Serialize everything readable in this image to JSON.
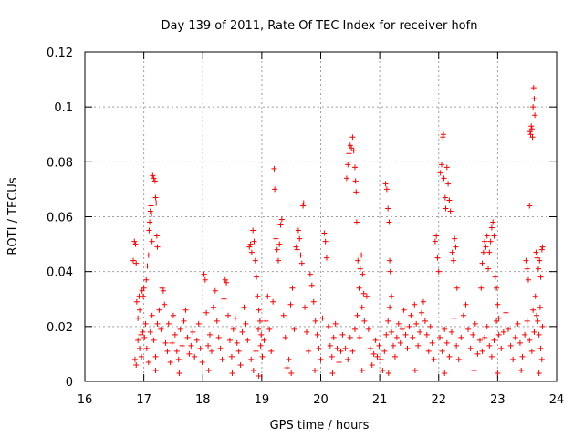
{
  "chart_data": {
    "type": "scatter",
    "title": "Day 139 of 2011, Rate Of TEC Index for receiver hofn",
    "xlabel": "GPS time / hours",
    "ylabel": "ROTI / TECUs",
    "xlim": [
      16,
      24
    ],
    "ylim": [
      0,
      0.12
    ],
    "x_ticks": [
      16,
      17,
      18,
      19,
      20,
      21,
      22,
      23,
      24
    ],
    "x_tick_labels": [
      "16",
      "17",
      "18",
      "19",
      "20",
      "21",
      "22",
      "23",
      "24"
    ],
    "y_ticks": [
      0,
      0.02,
      0.04,
      0.06,
      0.08,
      0.1,
      0.12
    ],
    "y_tick_labels": [
      "0",
      "0.02",
      "0.04",
      "0.06",
      "0.08",
      "0.1",
      "0.12"
    ],
    "grid": true,
    "marker": "+",
    "color": "#ff0000",
    "points": [
      [
        16.82,
        0.044
      ],
      [
        16.84,
        0.051
      ],
      [
        16.86,
        0.05
      ],
      [
        16.87,
        0.043
      ],
      [
        16.88,
        0.029
      ],
      [
        16.9,
        0.023
      ],
      [
        16.92,
        0.031
      ],
      [
        16.93,
        0.026
      ],
      [
        16.95,
        0.017
      ],
      [
        16.97,
        0.033
      ],
      [
        16.99,
        0.031
      ],
      [
        17.0,
        0.034
      ],
      [
        16.85,
        0.008
      ],
      [
        16.87,
        0.006
      ],
      [
        16.9,
        0.015
      ],
      [
        16.93,
        0.012
      ],
      [
        16.96,
        0.009
      ],
      [
        16.98,
        0.018
      ],
      [
        17.01,
        0.016
      ],
      [
        17.03,
        0.021
      ],
      [
        17.04,
        0.037
      ],
      [
        17.06,
        0.042
      ],
      [
        17.08,
        0.046
      ],
      [
        17.09,
        0.055
      ],
      [
        17.1,
        0.058
      ],
      [
        17.11,
        0.062
      ],
      [
        17.12,
        0.064
      ],
      [
        17.13,
        0.061
      ],
      [
        17.14,
        0.051
      ],
      [
        17.15,
        0.075
      ],
      [
        17.17,
        0.074
      ],
      [
        17.19,
        0.073
      ],
      [
        17.2,
        0.067
      ],
      [
        17.21,
        0.065
      ],
      [
        17.22,
        0.053
      ],
      [
        17.23,
        0.049
      ],
      [
        17.05,
        0.012
      ],
      [
        17.08,
        0.007
      ],
      [
        17.11,
        0.018
      ],
      [
        17.14,
        0.024
      ],
      [
        17.17,
        0.015
      ],
      [
        17.2,
        0.009
      ],
      [
        17.23,
        0.021
      ],
      [
        17.26,
        0.026
      ],
      [
        17.29,
        0.019
      ],
      [
        17.31,
        0.034
      ],
      [
        17.33,
        0.033
      ],
      [
        17.35,
        0.028
      ],
      [
        17.37,
        0.014
      ],
      [
        17.4,
        0.011
      ],
      [
        17.42,
        0.021
      ],
      [
        17.45,
        0.007
      ],
      [
        17.48,
        0.014
      ],
      [
        17.5,
        0.024
      ],
      [
        17.53,
        0.017
      ],
      [
        17.56,
        0.011
      ],
      [
        17.59,
        0.008
      ],
      [
        17.62,
        0.019
      ],
      [
        17.65,
        0.013
      ],
      [
        17.68,
        0.022
      ],
      [
        17.71,
        0.026
      ],
      [
        17.74,
        0.016
      ],
      [
        17.77,
        0.01
      ],
      [
        17.8,
        0.013
      ],
      [
        17.83,
        0.018
      ],
      [
        17.86,
        0.009
      ],
      [
        17.9,
        0.015
      ],
      [
        17.93,
        0.021
      ],
      [
        17.96,
        0.012
      ],
      [
        17.99,
        0.007
      ],
      [
        18.02,
        0.039
      ],
      [
        18.04,
        0.037
      ],
      [
        18.06,
        0.025
      ],
      [
        18.09,
        0.013
      ],
      [
        18.12,
        0.017
      ],
      [
        18.15,
        0.011
      ],
      [
        18.18,
        0.027
      ],
      [
        18.21,
        0.033
      ],
      [
        18.24,
        0.022
      ],
      [
        18.27,
        0.016
      ],
      [
        18.3,
        0.012
      ],
      [
        18.33,
        0.008
      ],
      [
        18.36,
        0.03
      ],
      [
        18.38,
        0.037
      ],
      [
        18.4,
        0.036
      ],
      [
        18.43,
        0.024
      ],
      [
        18.46,
        0.015
      ],
      [
        18.49,
        0.009
      ],
      [
        18.52,
        0.019
      ],
      [
        18.55,
        0.023
      ],
      [
        18.58,
        0.014
      ],
      [
        18.61,
        0.011
      ],
      [
        18.64,
        0.006
      ],
      [
        18.67,
        0.018
      ],
      [
        18.7,
        0.027
      ],
      [
        18.73,
        0.021
      ],
      [
        18.76,
        0.015
      ],
      [
        18.79,
        0.049
      ],
      [
        18.81,
        0.05
      ],
      [
        18.83,
        0.047
      ],
      [
        18.85,
        0.055
      ],
      [
        18.87,
        0.051
      ],
      [
        18.89,
        0.044
      ],
      [
        18.91,
        0.038
      ],
      [
        18.93,
        0.031
      ],
      [
        18.95,
        0.026
      ],
      [
        18.97,
        0.022
      ],
      [
        18.99,
        0.017
      ],
      [
        18.82,
        0.008
      ],
      [
        18.86,
        0.004
      ],
      [
        18.9,
        0.011
      ],
      [
        18.94,
        0.019
      ],
      [
        18.98,
        0.013
      ],
      [
        19.01,
        0.009
      ],
      [
        19.04,
        0.015
      ],
      [
        19.07,
        0.022
      ],
      [
        19.1,
        0.031
      ],
      [
        19.13,
        0.019
      ],
      [
        19.16,
        0.011
      ],
      [
        19.19,
        0.029
      ],
      [
        19.21,
        0.0775
      ],
      [
        19.22,
        0.07
      ],
      [
        19.24,
        0.052
      ],
      [
        19.26,
        0.048
      ],
      [
        19.28,
        0.044
      ],
      [
        19.3,
        0.05
      ],
      [
        19.32,
        0.057
      ],
      [
        19.34,
        0.059
      ],
      [
        19.37,
        0.024
      ],
      [
        19.4,
        0.016
      ],
      [
        19.43,
        0.005
      ],
      [
        19.46,
        0.008
      ],
      [
        19.49,
        0.028
      ],
      [
        19.52,
        0.034
      ],
      [
        19.55,
        0.019
      ],
      [
        19.58,
        0.049
      ],
      [
        19.6,
        0.048
      ],
      [
        19.62,
        0.055
      ],
      [
        19.64,
        0.052
      ],
      [
        19.66,
        0.046
      ],
      [
        19.68,
        0.043
      ],
      [
        19.7,
        0.064
      ],
      [
        19.71,
        0.065
      ],
      [
        19.73,
        0.027
      ],
      [
        19.76,
        0.018
      ],
      [
        19.79,
        0.011
      ],
      [
        19.82,
        0.039
      ],
      [
        19.85,
        0.035
      ],
      [
        19.88,
        0.029
      ],
      [
        19.91,
        0.022
      ],
      [
        19.94,
        0.017
      ],
      [
        19.97,
        0.012
      ],
      [
        20.0,
        0.008
      ],
      [
        20.03,
        0.023
      ],
      [
        20.06,
        0.054
      ],
      [
        20.08,
        0.051
      ],
      [
        20.1,
        0.045
      ],
      [
        20.13,
        0.02
      ],
      [
        20.16,
        0.013
      ],
      [
        20.19,
        0.009
      ],
      [
        20.22,
        0.016
      ],
      [
        20.25,
        0.021
      ],
      [
        20.28,
        0.012
      ],
      [
        20.31,
        0.007
      ],
      [
        20.34,
        0.011
      ],
      [
        20.37,
        0.017
      ],
      [
        20.44,
        0.074
      ],
      [
        20.46,
        0.079
      ],
      [
        20.48,
        0.083
      ],
      [
        20.5,
        0.086
      ],
      [
        20.52,
        0.085
      ],
      [
        20.54,
        0.089
      ],
      [
        20.56,
        0.084
      ],
      [
        20.58,
        0.078
      ],
      [
        20.59,
        0.073
      ],
      [
        20.6,
        0.069
      ],
      [
        20.61,
        0.058
      ],
      [
        20.63,
        0.044
      ],
      [
        20.65,
        0.034
      ],
      [
        20.67,
        0.041
      ],
      [
        20.69,
        0.046
      ],
      [
        20.71,
        0.039
      ],
      [
        20.73,
        0.032
      ],
      [
        20.42,
        0.012
      ],
      [
        20.46,
        0.008
      ],
      [
        20.5,
        0.016
      ],
      [
        20.54,
        0.011
      ],
      [
        20.58,
        0.019
      ],
      [
        20.62,
        0.024
      ],
      [
        20.66,
        0.016
      ],
      [
        20.7,
        0.027
      ],
      [
        20.74,
        0.022
      ],
      [
        20.78,
        0.031
      ],
      [
        20.81,
        0.019
      ],
      [
        20.84,
        0.012
      ],
      [
        20.87,
        0.006
      ],
      [
        20.9,
        0.01
      ],
      [
        20.93,
        0.015
      ],
      [
        20.96,
        0.009
      ],
      [
        20.99,
        0.013
      ],
      [
        21.1,
        0.072
      ],
      [
        21.12,
        0.07
      ],
      [
        21.14,
        0.063
      ],
      [
        21.16,
        0.058
      ],
      [
        21.17,
        0.044
      ],
      [
        21.18,
        0.04
      ],
      [
        21.2,
        0.031
      ],
      [
        21.02,
        0.008
      ],
      [
        21.05,
        0.004
      ],
      [
        21.08,
        0.011
      ],
      [
        21.11,
        0.017
      ],
      [
        21.14,
        0.022
      ],
      [
        21.17,
        0.027
      ],
      [
        21.2,
        0.018
      ],
      [
        21.23,
        0.013
      ],
      [
        21.26,
        0.009
      ],
      [
        21.29,
        0.016
      ],
      [
        21.32,
        0.021
      ],
      [
        21.35,
        0.014
      ],
      [
        21.38,
        0.019
      ],
      [
        21.41,
        0.026
      ],
      [
        21.44,
        0.017
      ],
      [
        21.47,
        0.012
      ],
      [
        21.5,
        0.02
      ],
      [
        21.53,
        0.024
      ],
      [
        21.56,
        0.016
      ],
      [
        21.59,
        0.028
      ],
      [
        21.62,
        0.021
      ],
      [
        21.65,
        0.013
      ],
      [
        21.68,
        0.018
      ],
      [
        21.71,
        0.025
      ],
      [
        21.74,
        0.029
      ],
      [
        21.77,
        0.022
      ],
      [
        21.8,
        0.017
      ],
      [
        21.83,
        0.011
      ],
      [
        21.86,
        0.02
      ],
      [
        21.89,
        0.014
      ],
      [
        21.92,
        0.008
      ],
      [
        21.94,
        0.051
      ],
      [
        21.96,
        0.053
      ],
      [
        21.98,
        0.045
      ],
      [
        22.0,
        0.04
      ],
      [
        22.03,
        0.076
      ],
      [
        22.05,
        0.079
      ],
      [
        22.07,
        0.089
      ],
      [
        22.08,
        0.09
      ],
      [
        22.09,
        0.074
      ],
      [
        22.11,
        0.067
      ],
      [
        22.12,
        0.063
      ],
      [
        22.14,
        0.078
      ],
      [
        22.16,
        0.072
      ],
      [
        22.18,
        0.066
      ],
      [
        22.2,
        0.062
      ],
      [
        22.23,
        0.047
      ],
      [
        22.25,
        0.044
      ],
      [
        22.27,
        0.052
      ],
      [
        22.29,
        0.049
      ],
      [
        22.31,
        0.034
      ],
      [
        22.02,
        0.016
      ],
      [
        22.06,
        0.011
      ],
      [
        22.1,
        0.019
      ],
      [
        22.14,
        0.014
      ],
      [
        22.18,
        0.009
      ],
      [
        22.22,
        0.018
      ],
      [
        22.26,
        0.023
      ],
      [
        22.3,
        0.013
      ],
      [
        22.34,
        0.008
      ],
      [
        22.38,
        0.016
      ],
      [
        22.42,
        0.024
      ],
      [
        22.46,
        0.028
      ],
      [
        22.5,
        0.019
      ],
      [
        22.54,
        0.012
      ],
      [
        22.58,
        0.017
      ],
      [
        22.62,
        0.021
      ],
      [
        22.66,
        0.01
      ],
      [
        22.7,
        0.015
      ],
      [
        22.72,
        0.034
      ],
      [
        22.74,
        0.043
      ],
      [
        22.76,
        0.047
      ],
      [
        22.78,
        0.051
      ],
      [
        22.8,
        0.049
      ],
      [
        22.82,
        0.053
      ],
      [
        22.84,
        0.041
      ],
      [
        22.86,
        0.047
      ],
      [
        22.88,
        0.051
      ],
      [
        22.9,
        0.056
      ],
      [
        22.92,
        0.058
      ],
      [
        22.94,
        0.053
      ],
      [
        22.96,
        0.038
      ],
      [
        22.98,
        0.034
      ],
      [
        23.0,
        0.028
      ],
      [
        23.02,
        0.023
      ],
      [
        22.74,
        0.011
      ],
      [
        22.78,
        0.016
      ],
      [
        22.82,
        0.02
      ],
      [
        22.86,
        0.013
      ],
      [
        22.9,
        0.009
      ],
      [
        22.94,
        0.015
      ],
      [
        22.98,
        0.022
      ],
      [
        23.02,
        0.017
      ],
      [
        23.06,
        0.012
      ],
      [
        23.1,
        0.018
      ],
      [
        23.14,
        0.025
      ],
      [
        23.18,
        0.019
      ],
      [
        23.22,
        0.013
      ],
      [
        23.26,
        0.008
      ],
      [
        23.3,
        0.016
      ],
      [
        23.34,
        0.021
      ],
      [
        23.38,
        0.014
      ],
      [
        23.42,
        0.009
      ],
      [
        23.46,
        0.017
      ],
      [
        23.5,
        0.022
      ],
      [
        23.48,
        0.044
      ],
      [
        23.5,
        0.041
      ],
      [
        23.52,
        0.037
      ],
      [
        23.54,
        0.064
      ],
      [
        23.55,
        0.091
      ],
      [
        23.56,
        0.09
      ],
      [
        23.57,
        0.093
      ],
      [
        23.58,
        0.092
      ],
      [
        23.59,
        0.089
      ],
      [
        23.6,
        0.1
      ],
      [
        23.61,
        0.107
      ],
      [
        23.62,
        0.103
      ],
      [
        23.63,
        0.097
      ],
      [
        23.65,
        0.047
      ],
      [
        23.67,
        0.045
      ],
      [
        23.69,
        0.041
      ],
      [
        23.71,
        0.044
      ],
      [
        23.73,
        0.038
      ],
      [
        23.75,
        0.048
      ],
      [
        23.76,
        0.049
      ],
      [
        23.54,
        0.015
      ],
      [
        23.58,
        0.011
      ],
      [
        23.62,
        0.018
      ],
      [
        23.66,
        0.024
      ],
      [
        23.7,
        0.017
      ],
      [
        23.73,
        0.012
      ],
      [
        23.75,
        0.008
      ],
      [
        23.76,
        0.02
      ],
      [
        23.6,
        0.026
      ],
      [
        23.64,
        0.031
      ],
      [
        23.68,
        0.022
      ],
      [
        23.72,
        0.027
      ],
      [
        17.2,
        0.004
      ],
      [
        17.6,
        0.003
      ],
      [
        18.1,
        0.004
      ],
      [
        18.5,
        0.003
      ],
      [
        18.95,
        0.002
      ],
      [
        19.5,
        0.003
      ],
      [
        19.9,
        0.004
      ],
      [
        20.2,
        0.003
      ],
      [
        20.7,
        0.004
      ],
      [
        21.15,
        0.003
      ],
      [
        21.6,
        0.004
      ],
      [
        22.1,
        0.003
      ],
      [
        22.6,
        0.004
      ],
      [
        23.0,
        0.003
      ],
      [
        23.4,
        0.004
      ],
      [
        23.7,
        0.003
      ]
    ]
  }
}
